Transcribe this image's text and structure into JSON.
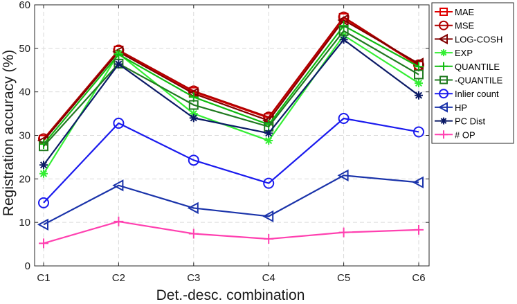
{
  "chart_data": {
    "type": "line",
    "title": "",
    "xlabel": "Det.-desc. combination",
    "ylabel": "Registration accuracy (%)",
    "categories": [
      "C1",
      "C2",
      "C3",
      "C4",
      "C5",
      "C6"
    ],
    "ylim": [
      0,
      60
    ],
    "yticks": [
      0,
      10,
      20,
      30,
      40,
      50,
      60
    ],
    "grid": true,
    "legend_position": "top-right",
    "series": [
      {
        "name": "MAE",
        "color": "#e00000",
        "marker": "square",
        "values": [
          29.0,
          49.5,
          40.0,
          34.0,
          57.0,
          46.0
        ]
      },
      {
        "name": "MSE",
        "color": "#b00000",
        "marker": "circle",
        "values": [
          29.2,
          49.6,
          40.2,
          34.2,
          57.2,
          46.2
        ]
      },
      {
        "name": "LOG-COSH",
        "color": "#800000",
        "marker": "triangle-left",
        "values": [
          28.8,
          49.2,
          39.6,
          33.4,
          56.5,
          46.5
        ]
      },
      {
        "name": "EXP",
        "color": "#33ee33",
        "marker": "asterisk",
        "values": [
          21.2,
          48.8,
          35.0,
          28.8,
          53.0,
          42.0
        ]
      },
      {
        "name": "QUANTILE",
        "color": "#11bb11",
        "marker": "plus",
        "values": [
          28.0,
          48.6,
          38.8,
          32.5,
          55.2,
          45.8
        ]
      },
      {
        "name": "-QUANTILE",
        "color": "#207a20",
        "marker": "square",
        "values": [
          27.5,
          46.5,
          37.0,
          32.0,
          54.0,
          44.0
        ]
      },
      {
        "name": "Inlier count",
        "color": "#1a1aee",
        "marker": "circle",
        "values": [
          14.5,
          32.8,
          24.3,
          19.0,
          33.9,
          30.8
        ]
      },
      {
        "name": "HP",
        "color": "#1a33aa",
        "marker": "triangle-left",
        "values": [
          9.5,
          18.5,
          13.3,
          11.4,
          20.8,
          19.2
        ]
      },
      {
        "name": "PC Dist",
        "color": "#0b1a66",
        "marker": "asterisk",
        "values": [
          23.2,
          46.4,
          34.0,
          30.5,
          52.0,
          39.2
        ]
      },
      {
        "name": "# OP",
        "color": "#ff40b0",
        "marker": "plus",
        "values": [
          5.2,
          10.2,
          7.4,
          6.2,
          7.7,
          8.3
        ]
      }
    ]
  }
}
